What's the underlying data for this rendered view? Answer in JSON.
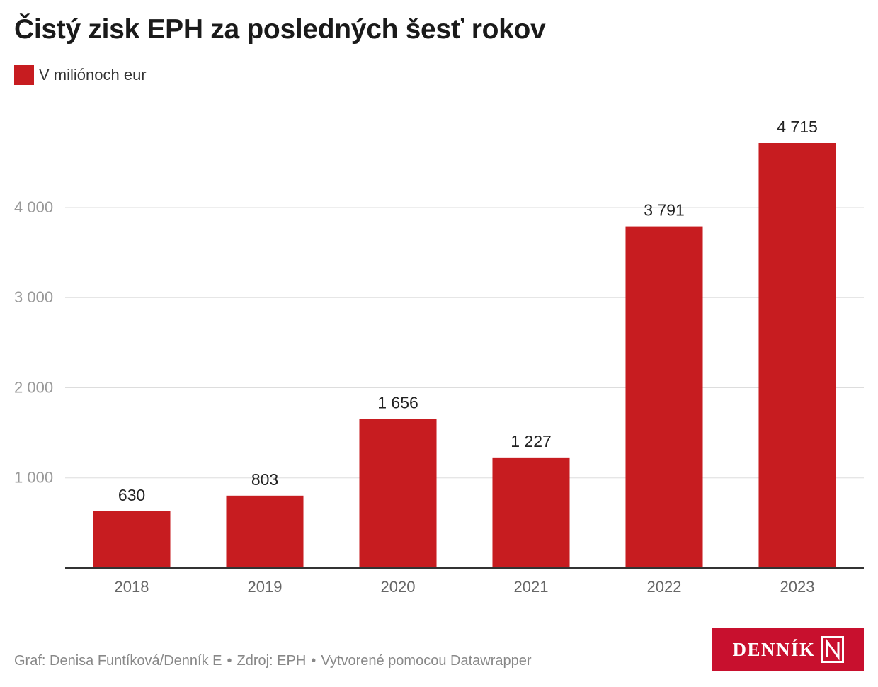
{
  "title": "Čistý zisk EPH za posledných šesť rokov",
  "legend": {
    "label": "V miliónoch eur",
    "color": "#c71c20"
  },
  "footer": {
    "author": "Graf: Denisa Funtíková/Denník E",
    "source": "Zdroj: EPH",
    "tool": "Vytvorené pomocou Datawrapper",
    "separator": "•"
  },
  "brand": {
    "name": "DENNÍK",
    "color": "#c8102e"
  },
  "chart_data": {
    "type": "bar",
    "categories": [
      "2018",
      "2019",
      "2020",
      "2021",
      "2022",
      "2023"
    ],
    "values": [
      630,
      803,
      1656,
      1227,
      3791,
      4715
    ],
    "value_labels": [
      "630",
      "803",
      "1 656",
      "1 227",
      "3 791",
      "4 715"
    ],
    "yticks": [
      1000,
      2000,
      3000,
      4000
    ],
    "ytick_labels": [
      "1 000",
      "2 000",
      "3 000",
      "4 000"
    ],
    "ylim": [
      0,
      4715
    ],
    "grid": true,
    "bar_color": "#c71c20",
    "legend_position": "top-left"
  }
}
